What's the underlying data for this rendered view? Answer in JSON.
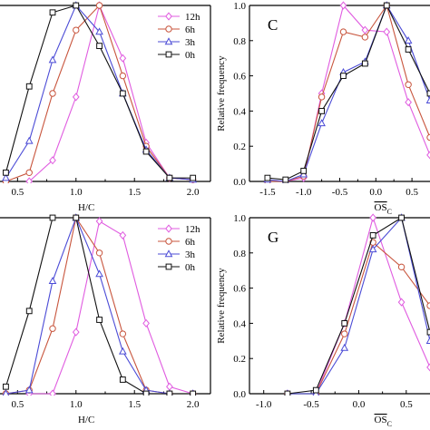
{
  "series_styles": [
    {
      "key": "12h",
      "color": "#e05ce0",
      "marker": "diamond"
    },
    {
      "key": "6h",
      "color": "#c8553d",
      "marker": "circle"
    },
    {
      "key": "3h",
      "color": "#4b4bd6",
      "marker": "triangle"
    },
    {
      "key": "0h",
      "color": "#111111",
      "marker": "square"
    }
  ],
  "chart_data": [
    {
      "id": "top-left",
      "type": "line",
      "letter": "",
      "xlabel": "H/C",
      "ylabel": "",
      "xlim": [
        0.35,
        2.15
      ],
      "ylim": [
        0,
        1.0
      ],
      "xticks": [
        0.5,
        1.0,
        1.5,
        2.0
      ],
      "xtick_labels": [
        "0.5",
        "1.0",
        "1.5",
        "2.0"
      ],
      "yticks": [],
      "ytick_labels": [],
      "legend": [
        "12h",
        "6h",
        "3h",
        "0h"
      ],
      "series": [
        {
          "name": "12h",
          "x": [
            0.6,
            0.8,
            1.0,
            1.2,
            1.4,
            1.6,
            1.8,
            2.0
          ],
          "y": [
            0.0,
            0.12,
            0.48,
            1.0,
            0.7,
            0.22,
            0.02,
            0.01
          ]
        },
        {
          "name": "6h",
          "x": [
            0.4,
            0.6,
            0.8,
            1.0,
            1.2,
            1.4,
            1.6,
            1.8,
            2.0
          ],
          "y": [
            0.0,
            0.05,
            0.5,
            0.86,
            1.0,
            0.6,
            0.2,
            0.02,
            0.01
          ]
        },
        {
          "name": "3h",
          "x": [
            0.4,
            0.6,
            0.8,
            1.0,
            1.2,
            1.4,
            1.6,
            1.8,
            2.0
          ],
          "y": [
            0.02,
            0.23,
            0.69,
            1.0,
            0.85,
            0.5,
            0.18,
            0.02,
            0.01
          ]
        },
        {
          "name": "0h",
          "x": [
            0.4,
            0.6,
            0.8,
            1.0,
            1.2,
            1.4,
            1.6,
            1.8,
            2.0
          ],
          "y": [
            0.05,
            0.54,
            0.96,
            1.0,
            0.77,
            0.5,
            0.17,
            0.02,
            0.02
          ]
        }
      ]
    },
    {
      "id": "top-right",
      "type": "line",
      "letter": "C",
      "xlabel": "OS",
      "xlabel_sub": "C",
      "xlabel_overline": true,
      "ylabel": "Relative frequency",
      "xlim": [
        -1.75,
        0.75
      ],
      "ylim": [
        0,
        1.0
      ],
      "xticks": [
        -1.5,
        -1.0,
        -0.5,
        0.0,
        0.5
      ],
      "xtick_labels": [
        "-1.5",
        "-1.0",
        "-0.5",
        "0.0",
        "0.5"
      ],
      "yticks": [
        0.0,
        0.2,
        0.4,
        0.6,
        0.8,
        1.0
      ],
      "ytick_labels": [
        "0.0",
        "0.2",
        "0.4",
        "0.6",
        "0.8",
        "1.0"
      ],
      "legend": [],
      "series": [
        {
          "name": "12h",
          "x": [
            -1.5,
            -1.25,
            -1.0,
            -0.75,
            -0.45,
            -0.15,
            0.15,
            0.45,
            0.75
          ],
          "y": [
            0.0,
            0.0,
            0.02,
            0.5,
            1.0,
            0.86,
            0.85,
            0.45,
            0.15
          ]
        },
        {
          "name": "6h",
          "x": [
            -1.5,
            -1.25,
            -1.0,
            -0.75,
            -0.45,
            -0.15,
            0.15,
            0.45,
            0.75
          ],
          "y": [
            0.0,
            0.0,
            0.03,
            0.48,
            0.85,
            0.82,
            1.0,
            0.55,
            0.25
          ]
        },
        {
          "name": "3h",
          "x": [
            -1.5,
            -1.25,
            -1.0,
            -0.75,
            -0.45,
            -0.15,
            0.15,
            0.45,
            0.75
          ],
          "y": [
            0.01,
            0.0,
            0.04,
            0.33,
            0.62,
            0.68,
            1.0,
            0.8,
            0.46
          ]
        },
        {
          "name": "0h",
          "x": [
            -1.5,
            -1.25,
            -1.0,
            -0.75,
            -0.45,
            -0.15,
            0.15,
            0.45,
            0.75
          ],
          "y": [
            0.02,
            0.01,
            0.06,
            0.4,
            0.6,
            0.67,
            1.0,
            0.75,
            0.5
          ]
        }
      ]
    },
    {
      "id": "bottom-left",
      "type": "line",
      "letter": "",
      "xlabel": "H/C",
      "ylabel": "",
      "xlim": [
        0.35,
        2.15
      ],
      "ylim": [
        0,
        1.0
      ],
      "xticks": [
        0.5,
        1.0,
        1.5,
        2.0
      ],
      "xtick_labels": [
        "0.5",
        "1.0",
        "1.5",
        "2.0"
      ],
      "yticks": [],
      "ytick_labels": [],
      "legend": [
        "12h",
        "6h",
        "3h",
        "0h"
      ],
      "series": [
        {
          "name": "12h",
          "x": [
            0.6,
            0.8,
            1.0,
            1.2,
            1.4,
            1.6,
            1.8,
            2.0
          ],
          "y": [
            0.0,
            0.0,
            0.35,
            0.98,
            0.9,
            0.4,
            0.04,
            0.0
          ]
        },
        {
          "name": "6h",
          "x": [
            0.4,
            0.6,
            0.8,
            1.0,
            1.2,
            1.4,
            1.6,
            1.8,
            2.0
          ],
          "y": [
            0.0,
            0.02,
            0.37,
            1.0,
            0.8,
            0.34,
            0.02,
            0.0,
            0.0
          ]
        },
        {
          "name": "3h",
          "x": [
            0.4,
            0.6,
            0.8,
            1.0,
            1.2,
            1.4,
            1.6,
            1.8,
            2.0
          ],
          "y": [
            0.0,
            0.02,
            0.64,
            1.0,
            0.68,
            0.24,
            0.02,
            0.0,
            0.0
          ]
        },
        {
          "name": "0h",
          "x": [
            0.4,
            0.6,
            0.8,
            1.0,
            1.2,
            1.4,
            1.6,
            1.8,
            2.0
          ],
          "y": [
            0.04,
            0.47,
            1.0,
            1.0,
            0.42,
            0.08,
            0.0,
            0.0,
            0.0
          ]
        }
      ]
    },
    {
      "id": "bottom-right",
      "type": "line",
      "letter": "G",
      "xlabel": "OS",
      "xlabel_sub": "C",
      "xlabel_overline": true,
      "ylabel": "Relative frequency",
      "xlim": [
        -1.15,
        0.75
      ],
      "ylim": [
        0,
        1.0
      ],
      "xticks": [
        -1.0,
        -0.5,
        0.0,
        0.5
      ],
      "xtick_labels": [
        "-1.0",
        "-0.5",
        "0.0",
        "0.5"
      ],
      "yticks": [
        0.0,
        0.2,
        0.4,
        0.6,
        0.8,
        1.0
      ],
      "ytick_labels": [
        "0.0",
        "0.2",
        "0.4",
        "0.6",
        "0.8",
        "1.0"
      ],
      "legend": [],
      "series": [
        {
          "name": "12h",
          "x": [
            -0.75,
            -0.45,
            -0.15,
            0.15,
            0.45,
            0.75
          ],
          "y": [
            0.0,
            0.0,
            0.4,
            1.0,
            0.52,
            0.15
          ]
        },
        {
          "name": "6h",
          "x": [
            -0.75,
            -0.45,
            -0.15,
            0.15,
            0.45,
            0.75
          ],
          "y": [
            0.0,
            0.0,
            0.34,
            0.86,
            0.72,
            0.5
          ]
        },
        {
          "name": "3h",
          "x": [
            -0.75,
            -0.45,
            -0.15,
            0.15,
            0.45,
            0.75
          ],
          "y": [
            0.0,
            0.0,
            0.26,
            0.82,
            1.0,
            0.3
          ]
        },
        {
          "name": "0h",
          "x": [
            -0.75,
            -0.45,
            -0.15,
            0.15,
            0.45,
            0.75
          ],
          "y": [
            0.0,
            0.02,
            0.4,
            0.9,
            1.0,
            0.35
          ]
        }
      ]
    }
  ]
}
